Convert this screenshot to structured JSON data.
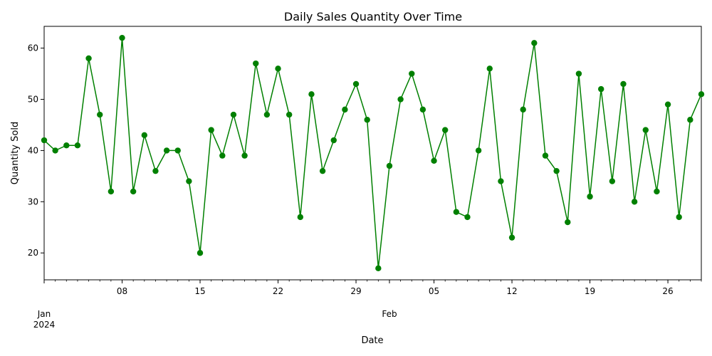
{
  "chart_data": {
    "type": "line",
    "title": "Daily Sales Quantity Over Time",
    "xlabel": "Date",
    "ylabel": "Quantity Sold",
    "x_start": "2024-01-01",
    "x_end": "2024-02-29",
    "ylim": [
      14.75,
      64.25
    ],
    "grid": false,
    "color": "#008000",
    "marker": "circle",
    "x": [
      "2024-01-01",
      "2024-01-02",
      "2024-01-03",
      "2024-01-04",
      "2024-01-05",
      "2024-01-06",
      "2024-01-07",
      "2024-01-08",
      "2024-01-09",
      "2024-01-10",
      "2024-01-11",
      "2024-01-12",
      "2024-01-13",
      "2024-01-14",
      "2024-01-15",
      "2024-01-16",
      "2024-01-17",
      "2024-01-18",
      "2024-01-19",
      "2024-01-20",
      "2024-01-21",
      "2024-01-22",
      "2024-01-23",
      "2024-01-24",
      "2024-01-25",
      "2024-01-26",
      "2024-01-27",
      "2024-01-28",
      "2024-01-29",
      "2024-01-30",
      "2024-01-31",
      "2024-02-01",
      "2024-02-02",
      "2024-02-03",
      "2024-02-04",
      "2024-02-05",
      "2024-02-06",
      "2024-02-07",
      "2024-02-08",
      "2024-02-09",
      "2024-02-10",
      "2024-02-11",
      "2024-02-12",
      "2024-02-13",
      "2024-02-14",
      "2024-02-15",
      "2024-02-16",
      "2024-02-17",
      "2024-02-18",
      "2024-02-19",
      "2024-02-20",
      "2024-02-21",
      "2024-02-22",
      "2024-02-23",
      "2024-02-24",
      "2024-02-25",
      "2024-02-26",
      "2024-02-27",
      "2024-02-28",
      "2024-02-29"
    ],
    "values": [
      42,
      40,
      41,
      41,
      58,
      47,
      32,
      62,
      32,
      43,
      36,
      40,
      40,
      34,
      20,
      44,
      39,
      47,
      39,
      57,
      47,
      56,
      47,
      27,
      51,
      36,
      42,
      48,
      53,
      46,
      17,
      37,
      50,
      55,
      48,
      38,
      44,
      28,
      27,
      40,
      56,
      34,
      23,
      48,
      61,
      39,
      36,
      26,
      55,
      31,
      52,
      34,
      53,
      30,
      44,
      32,
      49,
      27,
      46,
      51
    ],
    "yticks": [
      20,
      30,
      40,
      50,
      60
    ],
    "xticks": [
      {
        "date": "2024-01-01",
        "label": "Jan",
        "sublabel": "2024"
      },
      {
        "date": "2024-01-08",
        "label": "08"
      },
      {
        "date": "2024-01-15",
        "label": "15"
      },
      {
        "date": "2024-01-22",
        "label": "22"
      },
      {
        "date": "2024-01-29",
        "label": "29"
      },
      {
        "date": "2024-02-01",
        "label": "Feb"
      },
      {
        "date": "2024-02-05",
        "label": "05"
      },
      {
        "date": "2024-02-12",
        "label": "12"
      },
      {
        "date": "2024-02-19",
        "label": "19"
      },
      {
        "date": "2024-02-26",
        "label": "26"
      }
    ]
  }
}
